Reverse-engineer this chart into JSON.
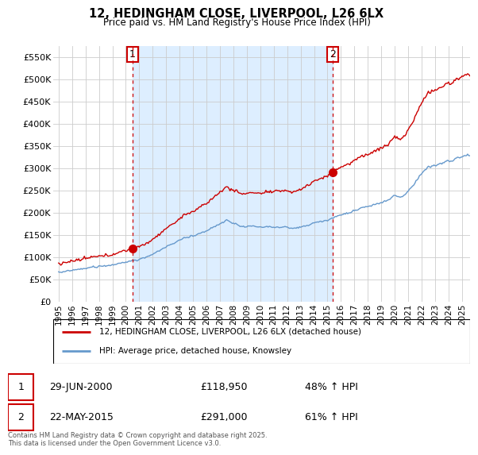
{
  "title": "12, HEDINGHAM CLOSE, LIVERPOOL, L26 6LX",
  "subtitle": "Price paid vs. HM Land Registry's House Price Index (HPI)",
  "legend_line1": "12, HEDINGHAM CLOSE, LIVERPOOL, L26 6LX (detached house)",
  "legend_line2": "HPI: Average price, detached house, Knowsley",
  "transaction1_date": "29-JUN-2000",
  "transaction1_price": "£118,950",
  "transaction1_hpi": "48% ↑ HPI",
  "transaction1_x": 2000.5,
  "transaction1_y": 118950,
  "transaction2_date": "22-MAY-2015",
  "transaction2_price": "£291,000",
  "transaction2_hpi": "61% ↑ HPI",
  "transaction2_x": 2015.38,
  "transaction2_y": 291000,
  "vline1_x": 2000.5,
  "vline2_x": 2015.38,
  "ylabel_ticks": [
    "£0",
    "£50K",
    "£100K",
    "£150K",
    "£200K",
    "£250K",
    "£300K",
    "£350K",
    "£400K",
    "£450K",
    "£500K",
    "£550K"
  ],
  "ytick_values": [
    0,
    50000,
    100000,
    150000,
    200000,
    250000,
    300000,
    350000,
    400000,
    450000,
    500000,
    550000
  ],
  "ylim": [
    0,
    575000
  ],
  "xlim_start": 1994.6,
  "xlim_end": 2025.6,
  "red_line_color": "#cc0000",
  "blue_line_color": "#6699cc",
  "vline_color": "#cc0000",
  "fill_color": "#ddeeff",
  "background_color": "#ffffff",
  "grid_color": "#cccccc",
  "footer_text": "Contains HM Land Registry data © Crown copyright and database right 2025.\nThis data is licensed under the Open Government Licence v3.0.",
  "xticks": [
    1995,
    1996,
    1997,
    1998,
    1999,
    2000,
    2001,
    2002,
    2003,
    2004,
    2005,
    2006,
    2007,
    2008,
    2009,
    2010,
    2011,
    2012,
    2013,
    2014,
    2015,
    2016,
    2017,
    2018,
    2019,
    2020,
    2021,
    2022,
    2023,
    2024,
    2025
  ]
}
